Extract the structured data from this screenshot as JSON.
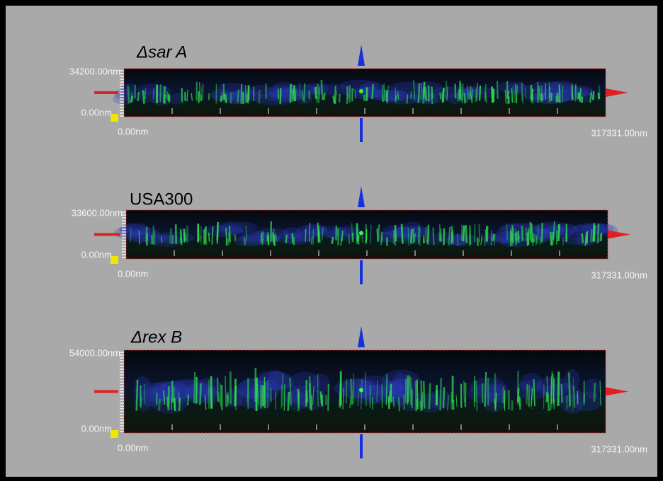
{
  "panels": [
    {
      "title": "Δsar A",
      "y_max_label": "34200.00nm",
      "y_min_label": "0.00nm",
      "x_min_label": "0.00nm",
      "x_max_label": "317331.00nm"
    },
    {
      "title": "USA300",
      "y_max_label": "33600.00nm",
      "y_min_label": "0.00nm",
      "x_min_label": "0.00nm",
      "x_max_label": "317331.00nm"
    },
    {
      "title": "Δrex B",
      "y_max_label": "54000.00nm",
      "y_min_label": "0.00nm",
      "x_min_label": "0.00nm",
      "x_max_label": "317331.00nm"
    }
  ]
}
